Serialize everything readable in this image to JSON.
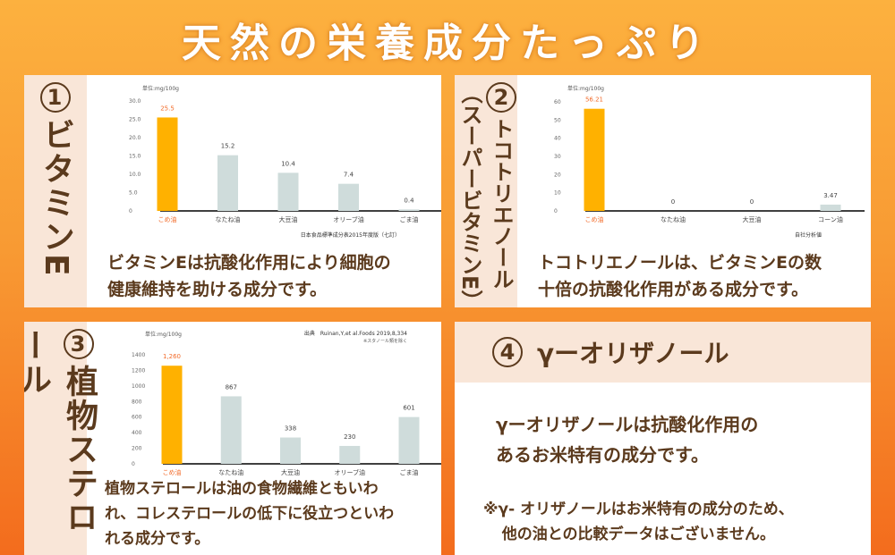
{
  "title": "天然の栄養成分たっぷり",
  "panels": [
    {
      "number": "1",
      "heading": "ビタミンE",
      "description_lines": [
        "ビタミンEは抗酸化作用により細胞の",
        "健康維持を助ける成分です。"
      ]
    },
    {
      "number": "2",
      "heading": "トコトリエノール",
      "subheading": "（スーパービタミンE）",
      "description_lines": [
        "トコトリエノールは、ビタミンEの数",
        "十倍の抗酸化作用がある成分です。"
      ]
    },
    {
      "number": "3",
      "heading": "植物ステロール",
      "description_lines": [
        "植物ステロールは油の食物繊維ともいわ",
        "れ、コレステロールの低下に役立つといわ",
        "れる成分です。"
      ]
    },
    {
      "number": "4",
      "heading": "γーオリザノール",
      "description_lines": [
        "γーオリザノールは抗酸化作用の",
        "あるお米特有の成分です。"
      ],
      "note_lines": [
        "※γ- オリザノールはお米特有の成分のため、",
        "他の油との比較データはございません。"
      ]
    }
  ],
  "colors": {
    "highlight_bar": "#ffb100",
    "other_bar": "#cfdcdb",
    "highlight_label": "#f26b2a",
    "text_brown": "#5b3a1d"
  },
  "chart_data": [
    {
      "type": "bar",
      "unit_label": "単位:mg/100g",
      "categories": [
        "こめ油",
        "なたね油",
        "大豆油",
        "オリーブ油",
        "ごま油"
      ],
      "values": [
        25.5,
        15.2,
        10.4,
        7.4,
        0.4
      ],
      "value_labels": [
        "25.5",
        "15.2",
        "10.4",
        "7.4",
        "0.4"
      ],
      "yticks": [
        "0",
        "5.0",
        "10.0",
        "15.0",
        "20.0",
        "25.0",
        "30.0"
      ],
      "ylim": [
        0,
        30
      ],
      "highlight_index": 0,
      "source": "日本食品標準成分表2015年度版（七訂）"
    },
    {
      "type": "bar",
      "unit_label": "単位:mg/100g",
      "categories": [
        "こめ油",
        "なたね油",
        "大豆油",
        "コーン油"
      ],
      "values": [
        56.21,
        0,
        0,
        3.47
      ],
      "value_labels": [
        "56.21",
        "0",
        "0",
        "3.47"
      ],
      "yticks": [
        "0",
        "10",
        "20",
        "30",
        "40",
        "50",
        "60"
      ],
      "ylim": [
        0,
        60
      ],
      "highlight_index": 0,
      "source": "自社分析値"
    },
    {
      "type": "bar",
      "unit_label": "単位:mg/100g",
      "categories": [
        "こめ油",
        "なたね油",
        "大豆油",
        "オリーブ油",
        "ごま油"
      ],
      "values": [
        1260,
        867,
        338,
        230,
        601
      ],
      "value_labels": [
        "1,260",
        "867",
        "338",
        "230",
        "601"
      ],
      "yticks": [
        "0",
        "200",
        "400",
        "600",
        "800",
        "1000",
        "1200",
        "1400"
      ],
      "ylim": [
        0,
        1400
      ],
      "highlight_index": 0,
      "source": "出典　Ruinan,Y,et al.Foods 2019,8,334",
      "source_note": "※スタノール類を除く"
    }
  ]
}
